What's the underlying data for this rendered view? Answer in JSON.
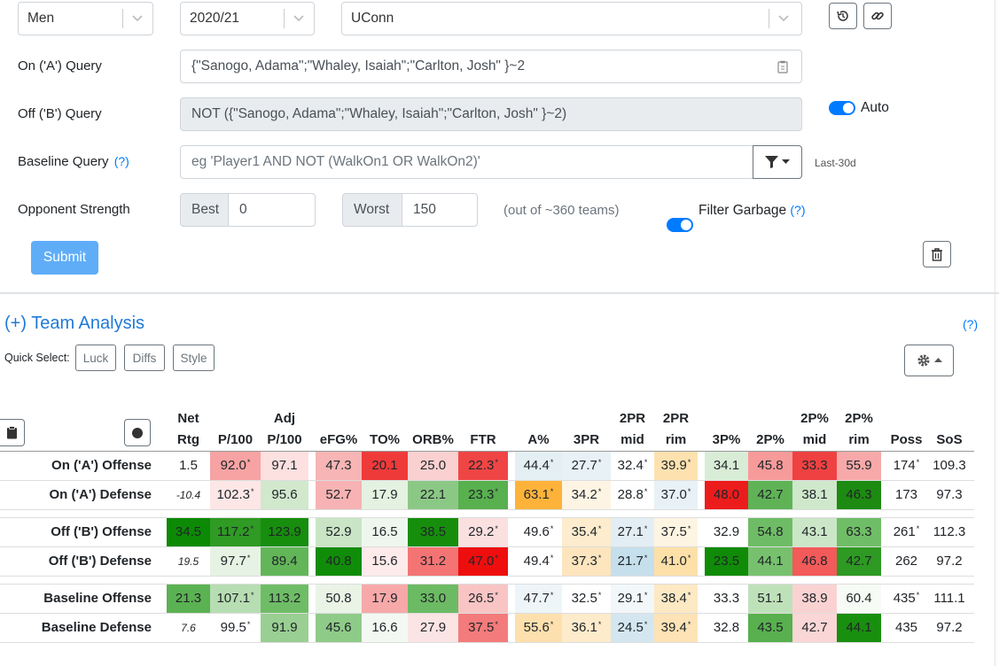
{
  "form": {
    "gender": "Men",
    "season": "2020/21",
    "team": "UConn",
    "on_label": "On ('A') Query",
    "on_value": "{\"Sanogo, Adama\";\"Whaley, Isaiah\";\"Carlton, Josh\" }~2",
    "off_label": "Off ('B') Query",
    "off_value": "NOT ({\"Sanogo, Adama\";\"Whaley, Isaiah\";\"Carlton, Josh\" }~2)",
    "auto_label": "Auto",
    "baseline_label": "Baseline Query",
    "help": "(?)",
    "baseline_placeholder": "eg 'Player1 AND NOT (WalkOn1 OR WalkOn2)'",
    "last30": "Last-30d",
    "opp_label": "Opponent Strength",
    "best_label": "Best",
    "best_value": "0",
    "worst_label": "Worst",
    "worst_value": "150",
    "out_of": "(out of ~360 teams)",
    "filter_garbage": "Filter Garbage",
    "submit": "Submit"
  },
  "analysis": {
    "title": "(+) Team Analysis",
    "help": "(?)",
    "quick_select_label": "Quick Select:",
    "quick": [
      "Luck",
      "Diffs",
      "Style"
    ]
  },
  "table": {
    "headers": [
      [
        "Net",
        "Rtg"
      ],
      [
        "",
        "P/100"
      ],
      [
        "Adj",
        "P/100"
      ],
      [
        "",
        "eFG%"
      ],
      [
        "",
        "TO%"
      ],
      [
        "",
        "ORB%"
      ],
      [
        "",
        "FTR"
      ],
      [
        "",
        "A%"
      ],
      [
        "",
        "3PR"
      ],
      [
        "2PR",
        "mid"
      ],
      [
        "2PR",
        "rim"
      ],
      [
        "",
        "3P%"
      ],
      [
        "",
        "2P%"
      ],
      [
        "2P%",
        "mid"
      ],
      [
        "2P%",
        "rim"
      ],
      [
        "",
        "Poss"
      ],
      [
        "",
        "SoS"
      ]
    ],
    "rows": [
      {
        "label": "On ('A') Offense",
        "cells": [
          {
            "v": "1.5",
            "bg": "#ffffff"
          },
          {
            "v": "92.0",
            "s": "*",
            "bg": "#f7a3a3"
          },
          {
            "v": "97.1",
            "bg": "#fde0e0"
          },
          {
            "v": "47.3",
            "bg": "#f7b5b5"
          },
          {
            "v": "20.1",
            "bg": "#ef3a3a"
          },
          {
            "v": "25.0",
            "bg": "#fbd0d0"
          },
          {
            "v": "22.3",
            "s": "*",
            "bg": "#f04545"
          },
          {
            "v": "44.4",
            "s": "*",
            "bg": "#e4eff4"
          },
          {
            "v": "27.7",
            "s": "*",
            "bg": "#e8f1f6"
          },
          {
            "v": "32.4",
            "s": "*",
            "bg": "#ffffff"
          },
          {
            "v": "39.9",
            "s": "*",
            "bg": "#fde2b0"
          },
          {
            "v": "34.1",
            "bg": "#d8ecd6"
          },
          {
            "v": "45.8",
            "bg": "#f79a9a"
          },
          {
            "v": "33.3",
            "bg": "#ef4141"
          },
          {
            "v": "55.9",
            "bg": "#f7a9a9"
          },
          {
            "v": "174",
            "s": "*",
            "bg": "#ffffff"
          },
          {
            "v": "109.3",
            "bg": "#ffffff"
          }
        ]
      },
      {
        "label": "On ('A') Defense",
        "cells": [
          {
            "v": "-10.4",
            "it": true,
            "bg": "#ffffff"
          },
          {
            "v": "102.3",
            "s": "*",
            "bg": "#fde6e6"
          },
          {
            "v": "95.6",
            "bg": "#d1e8cd"
          },
          {
            "v": "52.7",
            "bg": "#f7b3b3"
          },
          {
            "v": "17.9",
            "bg": "#e4f2e1"
          },
          {
            "v": "22.1",
            "bg": "#8cc885"
          },
          {
            "v": "23.3",
            "s": "*",
            "bg": "#58b04e"
          },
          {
            "v": "63.1",
            "s": "*",
            "bg": "#fdb33a"
          },
          {
            "v": "34.2",
            "s": "*",
            "bg": "#fef4e4"
          },
          {
            "v": "28.8",
            "s": "*",
            "bg": "#ffffff"
          },
          {
            "v": "37.0",
            "s": "*",
            "bg": "#e8f1f6"
          },
          {
            "v": "48.0",
            "bg": "#ed1c1c"
          },
          {
            "v": "42.7",
            "bg": "#5fb356"
          },
          {
            "v": "38.1",
            "bg": "#cfe7cb"
          },
          {
            "v": "46.3",
            "bg": "#1d8a12"
          },
          {
            "v": "173",
            "bg": "#ffffff"
          },
          {
            "v": "97.3",
            "bg": "#ffffff"
          }
        ]
      },
      {
        "gap": true
      },
      {
        "label": "Off ('B') Offense",
        "cells": [
          {
            "v": "34.5",
            "bg": "#0d8a05"
          },
          {
            "v": "117.2",
            "s": "*",
            "bg": "#2f9a24"
          },
          {
            "v": "123.9",
            "bg": "#178e0d"
          },
          {
            "v": "52.9",
            "bg": "#c9e5c5"
          },
          {
            "v": "16.5",
            "bg": "#eef7ed"
          },
          {
            "v": "38.5",
            "bg": "#168e0c"
          },
          {
            "v": "29.2",
            "s": "*",
            "bg": "#fbe0e0"
          },
          {
            "v": "49.6",
            "s": "*",
            "bg": "#ffffff"
          },
          {
            "v": "35.4",
            "s": "*",
            "bg": "#fdeccd"
          },
          {
            "v": "27.1",
            "s": "*",
            "bg": "#e2eef4"
          },
          {
            "v": "37.5",
            "s": "*",
            "bg": "#fef4e2"
          },
          {
            "v": "32.9",
            "bg": "#ffffff"
          },
          {
            "v": "54.8",
            "bg": "#6fbc66"
          },
          {
            "v": "43.1",
            "bg": "#cbe6c7"
          },
          {
            "v": "63.3",
            "bg": "#70bd67"
          },
          {
            "v": "261",
            "s": "*",
            "bg": "#ffffff"
          },
          {
            "v": "112.3",
            "bg": "#ffffff"
          }
        ]
      },
      {
        "label": "Off ('B') Defense",
        "cells": [
          {
            "v": "19.5",
            "it": true,
            "bg": "#ffffff"
          },
          {
            "v": "97.7",
            "s": "*",
            "bg": "#e6f3e4"
          },
          {
            "v": "89.4",
            "bg": "#62b658"
          },
          {
            "v": "40.8",
            "bg": "#118c08"
          },
          {
            "v": "15.6",
            "bg": "#fdeaea"
          },
          {
            "v": "31.2",
            "bg": "#f47474"
          },
          {
            "v": "47.0",
            "s": "*",
            "bg": "#ee0e0e"
          },
          {
            "v": "49.4",
            "s": "*",
            "bg": "#ffffff"
          },
          {
            "v": "37.3",
            "s": "*",
            "bg": "#fde5be"
          },
          {
            "v": "21.7",
            "s": "*",
            "bg": "#c6dfec"
          },
          {
            "v": "41.0",
            "s": "*",
            "bg": "#fde0a8"
          },
          {
            "v": "23.5",
            "bg": "#108b07"
          },
          {
            "v": "44.1",
            "bg": "#77c16e"
          },
          {
            "v": "46.8",
            "bg": "#f35a5a"
          },
          {
            "v": "42.7",
            "bg": "#2e9923"
          },
          {
            "v": "262",
            "bg": "#ffffff"
          },
          {
            "v": "97.2",
            "bg": "#ffffff"
          }
        ]
      },
      {
        "gap": true
      },
      {
        "label": "Baseline Offense",
        "cells": [
          {
            "v": "21.3",
            "bg": "#5bb252"
          },
          {
            "v": "107.1",
            "s": "*",
            "bg": "#b7ddb2"
          },
          {
            "v": "113.2",
            "bg": "#6fbc66"
          },
          {
            "v": "50.8",
            "bg": "#e9f4e7"
          },
          {
            "v": "17.9",
            "bg": "#f7a9a9"
          },
          {
            "v": "33.0",
            "bg": "#6cba63"
          },
          {
            "v": "26.5",
            "s": "*",
            "bg": "#f9c4c4"
          },
          {
            "v": "47.7",
            "s": "*",
            "bg": "#eef5f9"
          },
          {
            "v": "32.5",
            "s": "*",
            "bg": "#ffffff"
          },
          {
            "v": "29.1",
            "s": "*",
            "bg": "#f2f7fa"
          },
          {
            "v": "38.4",
            "s": "*",
            "bg": "#fde9c4"
          },
          {
            "v": "33.3",
            "bg": "#ffffff"
          },
          {
            "v": "51.1",
            "bg": "#bfe1ba"
          },
          {
            "v": "38.9",
            "bg": "#fad2d2"
          },
          {
            "v": "60.4",
            "bg": "#f6fbf5"
          },
          {
            "v": "435",
            "s": "*",
            "bg": "#ffffff"
          },
          {
            "v": "111.1",
            "bg": "#ffffff"
          }
        ]
      },
      {
        "label": "Baseline Defense",
        "cells": [
          {
            "v": "7.6",
            "it": true,
            "bg": "#ffffff"
          },
          {
            "v": "99.5",
            "s": "*",
            "bg": "#ffffff"
          },
          {
            "v": "91.9",
            "bg": "#99cf92"
          },
          {
            "v": "45.6",
            "bg": "#8fcb88"
          },
          {
            "v": "16.6",
            "bg": "#f3f9f2"
          },
          {
            "v": "27.9",
            "bg": "#fbe4e4"
          },
          {
            "v": "37.5",
            "s": "*",
            "bg": "#f37b7b"
          },
          {
            "v": "55.6",
            "s": "*",
            "bg": "#fde0ad"
          },
          {
            "v": "36.1",
            "s": "*",
            "bg": "#fdebcb"
          },
          {
            "v": "24.5",
            "s": "*",
            "bg": "#d4e7f0"
          },
          {
            "v": "39.4",
            "s": "*",
            "bg": "#fde3b5"
          },
          {
            "v": "32.8",
            "bg": "#ffffff"
          },
          {
            "v": "43.5",
            "bg": "#58b04e"
          },
          {
            "v": "42.7",
            "bg": "#fbd6d6"
          },
          {
            "v": "44.1",
            "bg": "#198f0f"
          },
          {
            "v": "435",
            "bg": "#ffffff"
          },
          {
            "v": "97.2",
            "bg": "#ffffff"
          }
        ]
      }
    ]
  }
}
